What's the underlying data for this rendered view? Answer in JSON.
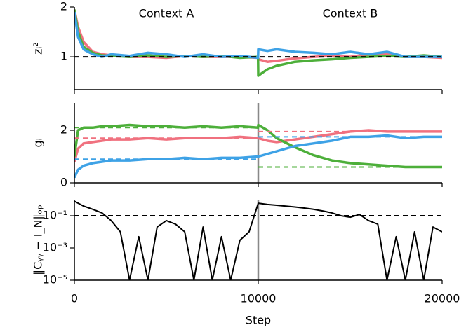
{
  "chart_data": [
    {
      "type": "line",
      "ylabel": "zᵢ²",
      "annotations": [
        "Context A",
        "Context B"
      ],
      "x": [
        0,
        200,
        500,
        1000,
        1500,
        2000,
        3000,
        4000,
        5000,
        6000,
        7000,
        8000,
        9000,
        9990,
        10000,
        10500,
        11000,
        12000,
        13000,
        14000,
        15000,
        16000,
        17000,
        18000,
        19000,
        20000
      ],
      "series": [
        {
          "color": "#f0717f",
          "values": [
            1.95,
            1.6,
            1.3,
            1.1,
            1.05,
            1.03,
            1.0,
            1.0,
            0.98,
            1.02,
            1.0,
            1.0,
            1.0,
            0.98,
            0.95,
            0.9,
            0.92,
            0.97,
            1.0,
            1.02,
            1.0,
            1.05,
            1.05,
            1.0,
            1.0,
            0.98
          ]
        },
        {
          "color": "#4daf3a",
          "values": [
            1.95,
            1.5,
            1.2,
            1.08,
            1.03,
            1.02,
            1.0,
            1.03,
            1.0,
            1.02,
            1.0,
            1.02,
            0.98,
            1.0,
            0.62,
            0.75,
            0.82,
            0.9,
            0.93,
            0.95,
            0.98,
            1.0,
            1.02,
            1.0,
            1.03,
            1.0
          ]
        },
        {
          "color": "#3ea2e6",
          "values": [
            1.9,
            1.4,
            1.15,
            1.05,
            1.0,
            1.05,
            1.02,
            1.08,
            1.05,
            1.0,
            1.05,
            1.0,
            1.02,
            0.98,
            1.15,
            1.12,
            1.15,
            1.1,
            1.08,
            1.05,
            1.1,
            1.05,
            1.1,
            1.0,
            1.0,
            1.0
          ]
        }
      ],
      "hlines": [
        {
          "y": 1,
          "x": [
            0,
            20000
          ],
          "color": "#000000"
        }
      ],
      "xlim": [
        0,
        20000
      ],
      "xticks": [
        0,
        10000,
        20000
      ],
      "ylim": [
        0.34,
        2
      ],
      "yticks": [
        1,
        2
      ]
    },
    {
      "type": "line",
      "ylabel": "gᵢ",
      "x": [
        0,
        200,
        500,
        1000,
        1500,
        2000,
        3000,
        4000,
        5000,
        6000,
        7000,
        8000,
        9000,
        9990,
        10000,
        10500,
        11000,
        12000,
        13000,
        14000,
        15000,
        16000,
        17000,
        18000,
        19000,
        20000
      ],
      "series": [
        {
          "color": "#f0717f",
          "values": [
            0.8,
            1.3,
            1.5,
            1.55,
            1.6,
            1.65,
            1.65,
            1.7,
            1.65,
            1.7,
            1.7,
            1.7,
            1.75,
            1.7,
            1.7,
            1.6,
            1.55,
            1.65,
            1.75,
            1.85,
            1.95,
            2.0,
            1.95,
            1.95,
            1.95,
            1.95
          ]
        },
        {
          "color": "#4daf3a",
          "values": [
            1.0,
            2.0,
            2.1,
            2.1,
            2.15,
            2.15,
            2.2,
            2.15,
            2.15,
            2.1,
            2.15,
            2.1,
            2.15,
            2.1,
            2.2,
            2.0,
            1.7,
            1.35,
            1.05,
            0.85,
            0.75,
            0.7,
            0.65,
            0.6,
            0.6,
            0.6
          ]
        },
        {
          "color": "#3ea2e6",
          "values": [
            0.2,
            0.5,
            0.65,
            0.75,
            0.8,
            0.85,
            0.85,
            0.9,
            0.9,
            0.95,
            0.9,
            0.95,
            0.95,
            1.0,
            1.0,
            1.1,
            1.2,
            1.4,
            1.5,
            1.6,
            1.75,
            1.75,
            1.8,
            1.7,
            1.75,
            1.75
          ]
        }
      ],
      "hlines": [
        {
          "y": 1.7,
          "x": [
            0,
            10000
          ],
          "color": "#f0717f"
        },
        {
          "y": 2.1,
          "x": [
            0,
            10000
          ],
          "color": "#4daf3a"
        },
        {
          "y": 0.9,
          "x": [
            0,
            10000
          ],
          "color": "#3ea2e6"
        },
        {
          "y": 1.95,
          "x": [
            10000,
            20000
          ],
          "color": "#f0717f"
        },
        {
          "y": 0.6,
          "x": [
            10000,
            20000
          ],
          "color": "#4daf3a"
        },
        {
          "y": 1.75,
          "x": [
            10000,
            20000
          ],
          "color": "#3ea2e6"
        }
      ],
      "vline": 10000,
      "xlim": [
        0,
        20000
      ],
      "xticks": [
        0,
        10000,
        20000
      ],
      "ylim": [
        0,
        3.04
      ],
      "yticks": [
        0,
        2
      ]
    },
    {
      "type": "line",
      "ylabel": "‖Cᵧᵧ − I_N‖ₒₚ",
      "xlabel": "Step",
      "log_y": true,
      "x": [
        0,
        500,
        1000,
        1500,
        2000,
        2500,
        3000,
        3500,
        4000,
        4500,
        5000,
        5500,
        6000,
        6500,
        7000,
        7500,
        8000,
        8500,
        9000,
        9500,
        10000,
        10500,
        11000,
        11500,
        12000,
        12500,
        13000,
        13500,
        14000,
        14500,
        15000,
        15500,
        16000,
        16500,
        17000,
        17500,
        18000,
        18500,
        19000,
        19500,
        20000
      ],
      "series": [
        {
          "color": "#000000",
          "values": [
            0.8,
            0.4,
            0.25,
            0.15,
            0.05,
            0.01,
            1e-05,
            0.005,
            1e-05,
            0.02,
            0.05,
            0.03,
            0.01,
            1e-05,
            0.02,
            1e-05,
            0.005,
            1e-05,
            0.003,
            0.01,
            0.6,
            0.5,
            0.45,
            0.4,
            0.35,
            0.3,
            0.25,
            0.2,
            0.15,
            0.1,
            0.08,
            0.12,
            0.05,
            0.03,
            1e-05,
            0.005,
            1e-05,
            0.01,
            1e-05,
            0.02,
            0.01
          ]
        }
      ],
      "hlines": [
        {
          "y": 0.1,
          "x": [
            0,
            20000
          ],
          "color": "#000000"
        }
      ],
      "vline": 10000,
      "xlim": [
        0,
        20000
      ],
      "xticks": [
        0,
        10000,
        20000
      ],
      "ylim": [
        1e-05,
        1
      ],
      "yticks": [
        {
          "value": 0.1,
          "label": "10⁻¹"
        },
        {
          "value": 0.001,
          "label": "10⁻³"
        },
        {
          "value": 1e-05,
          "label": "10⁻⁵"
        }
      ]
    }
  ]
}
